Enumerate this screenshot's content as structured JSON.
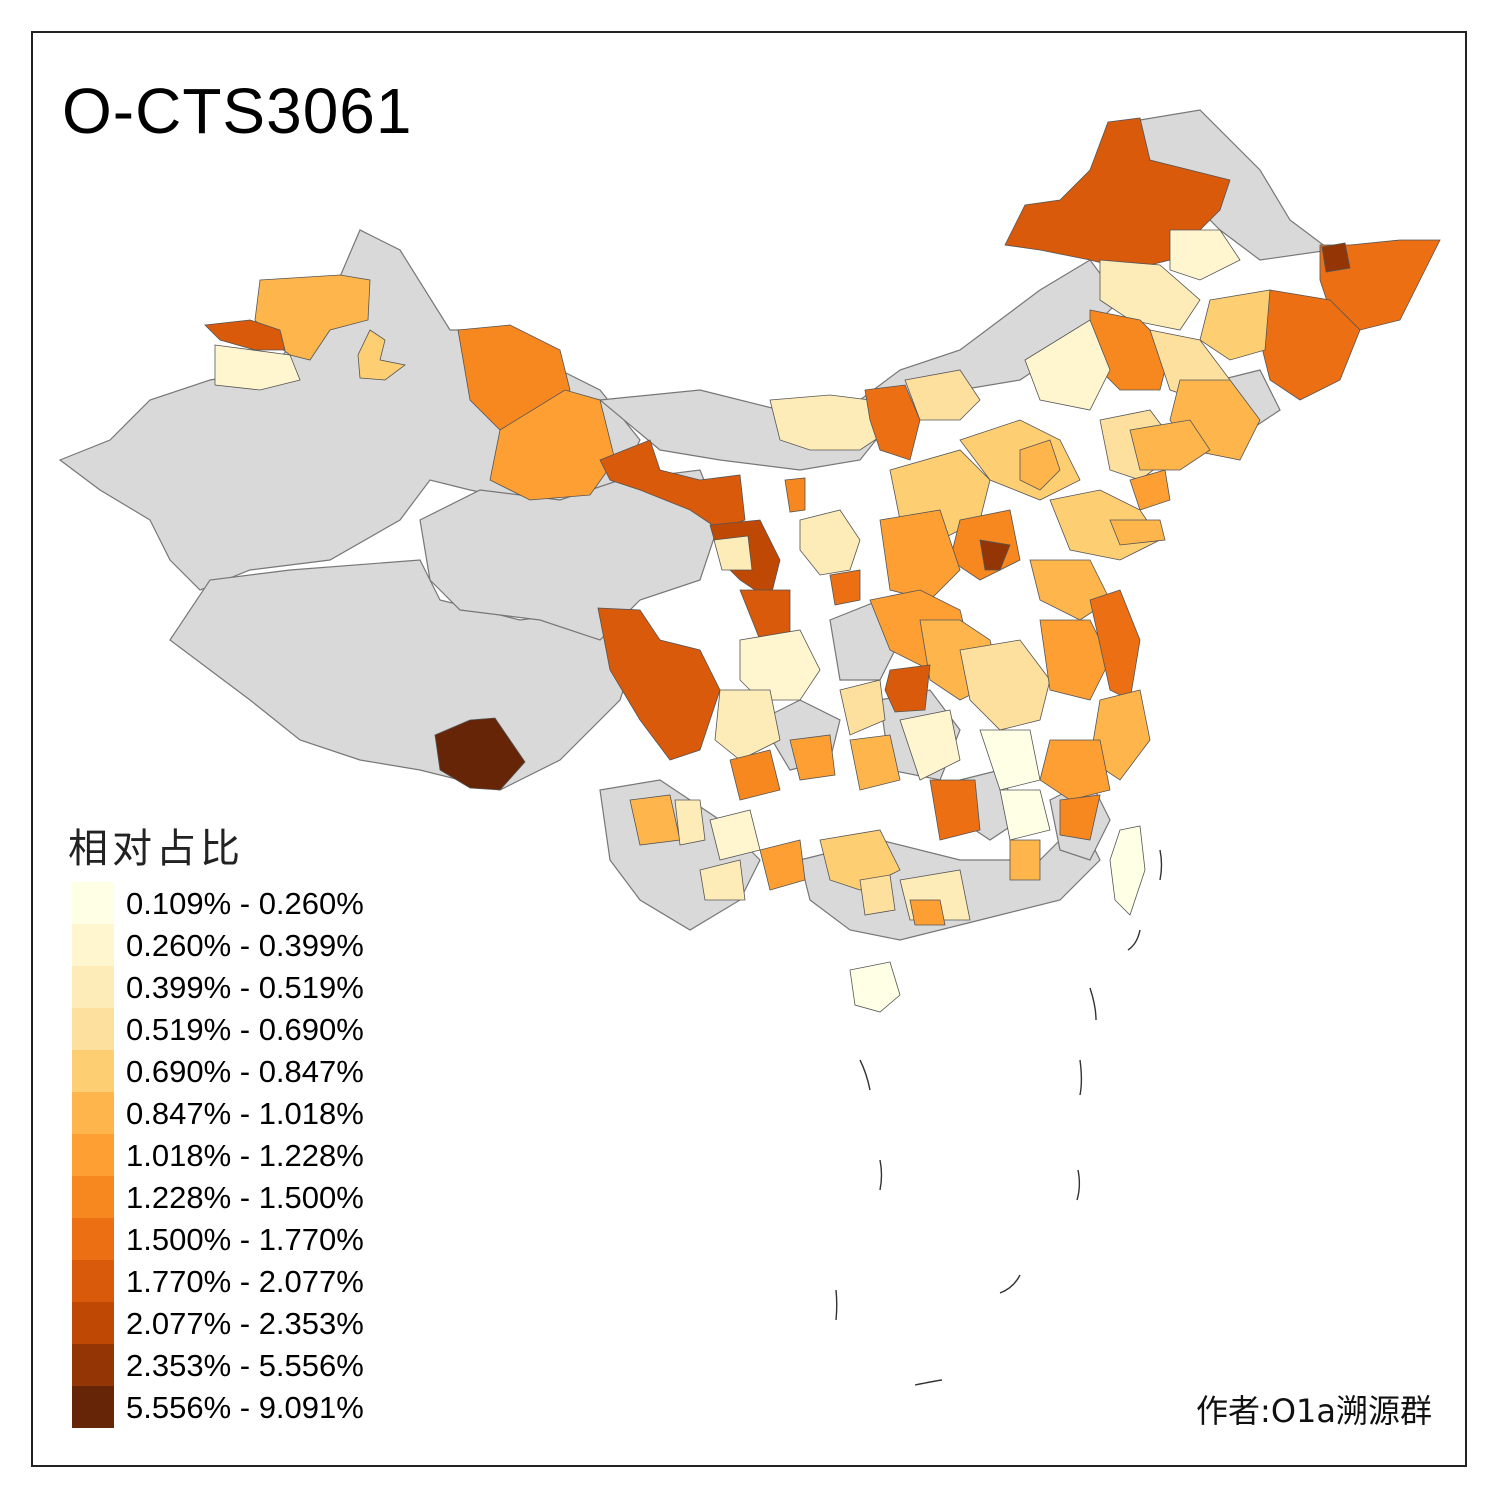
{
  "title": "O-CTS3061",
  "legend": {
    "title": "相对占比",
    "items": [
      {
        "label": "0.109% - 0.260%",
        "color": "#ffffe5"
      },
      {
        "label": "0.260% - 0.399%",
        "color": "#fff6cf"
      },
      {
        "label": "0.399% - 0.519%",
        "color": "#feecb8"
      },
      {
        "label": "0.519% - 0.690%",
        "color": "#fee09e"
      },
      {
        "label": "0.690% - 0.847%",
        "color": "#fece72"
      },
      {
        "label": "0.847% - 1.018%",
        "color": "#feb64c"
      },
      {
        "label": "1.018% - 1.228%",
        "color": "#fe9f33"
      },
      {
        "label": "1.228% - 1.500%",
        "color": "#f7871f"
      },
      {
        "label": "1.500% - 1.770%",
        "color": "#ec6f14"
      },
      {
        "label": "1.770% - 2.077%",
        "color": "#d85a0a"
      },
      {
        "label": "2.077% - 2.353%",
        "color": "#bf4804"
      },
      {
        "label": "2.353% - 5.556%",
        "color": "#933505"
      },
      {
        "label": "5.556% - 9.091%",
        "color": "#662506"
      }
    ]
  },
  "credit": "作者:O1a溯源群",
  "colors": {
    "no_data": "#d9d9d9",
    "border": "#666666",
    "background": "#ffffff"
  }
}
